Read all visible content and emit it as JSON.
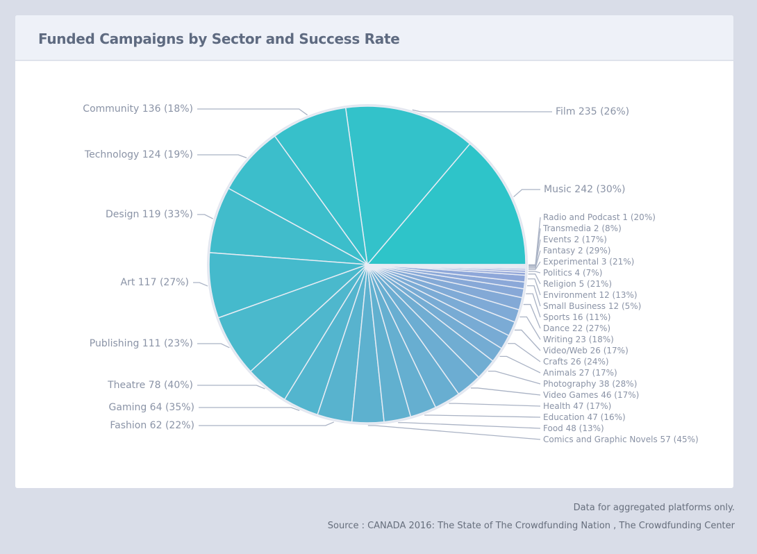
{
  "title": "Funded Campaigns by Sector and Success Rate",
  "footer": {
    "note": "Data for aggregated platforms only.",
    "source": "Source : CANADA 2016: The State of The Crowdfunding Nation , The Crowdfunding Center"
  },
  "chart_data": {
    "type": "pie",
    "title": "Funded Campaigns by Sector and Success Rate",
    "slices": [
      {
        "label": "Music",
        "value": 242,
        "rate": "30%"
      },
      {
        "label": "Film",
        "value": 235,
        "rate": "26%"
      },
      {
        "label": "Community",
        "value": 136,
        "rate": "18%"
      },
      {
        "label": "Technology",
        "value": 124,
        "rate": "19%"
      },
      {
        "label": "Design",
        "value": 119,
        "rate": "33%"
      },
      {
        "label": "Art",
        "value": 117,
        "rate": "27%"
      },
      {
        "label": "Publishing",
        "value": 111,
        "rate": "23%"
      },
      {
        "label": "Theatre",
        "value": 78,
        "rate": "40%"
      },
      {
        "label": "Gaming",
        "value": 64,
        "rate": "35%"
      },
      {
        "label": "Fashion",
        "value": 62,
        "rate": "22%"
      },
      {
        "label": "Comics and Graphic Novels",
        "value": 57,
        "rate": "45%"
      },
      {
        "label": "Food",
        "value": 48,
        "rate": "13%"
      },
      {
        "label": "Education",
        "value": 47,
        "rate": "16%"
      },
      {
        "label": "Health",
        "value": 47,
        "rate": "17%"
      },
      {
        "label": "Video Games",
        "value": 46,
        "rate": "17%"
      },
      {
        "label": "Photography",
        "value": 38,
        "rate": "28%"
      },
      {
        "label": "Animals",
        "value": 27,
        "rate": "17%"
      },
      {
        "label": "Crafts",
        "value": 26,
        "rate": "24%"
      },
      {
        "label": "Video/Web",
        "value": 26,
        "rate": "17%"
      },
      {
        "label": "Writing",
        "value": 23,
        "rate": "18%"
      },
      {
        "label": "Dance",
        "value": 22,
        "rate": "27%"
      },
      {
        "label": "Sports",
        "value": 16,
        "rate": "11%"
      },
      {
        "label": "Small Business",
        "value": 12,
        "rate": "5%"
      },
      {
        "label": "Environment",
        "value": 12,
        "rate": "13%"
      },
      {
        "label": "Religion",
        "value": 5,
        "rate": "21%"
      },
      {
        "label": "Politics",
        "value": 4,
        "rate": "7%"
      },
      {
        "label": "Experimental",
        "value": 3,
        "rate": "21%"
      },
      {
        "label": "Fantasy",
        "value": 2,
        "rate": "29%"
      },
      {
        "label": "Events",
        "value": 2,
        "rate": "17%"
      },
      {
        "label": "Transmedia",
        "value": 2,
        "rate": "8%"
      },
      {
        "label": "Radio and Podcast",
        "value": 1,
        "rate": "20%"
      }
    ],
    "colors": {
      "start": "#2ec4c9",
      "mid": "#5fb0cf",
      "end": "#a9a2de"
    }
  }
}
